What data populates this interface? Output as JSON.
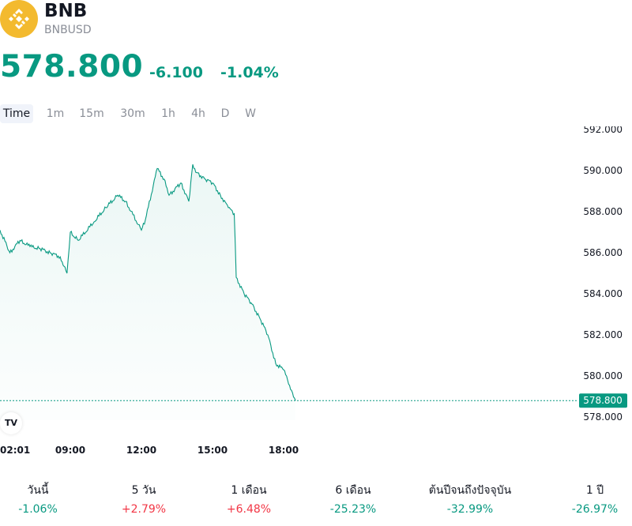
{
  "header": {
    "symbol": "BNB",
    "pair": "BNBUSD",
    "logo_color": "#F3BA2F"
  },
  "quote": {
    "price": "578.800",
    "change": "-6.100",
    "change_percent": "-1.04%",
    "color": "#089981"
  },
  "intervals": [
    {
      "label": "Time",
      "active": true
    },
    {
      "label": "1m",
      "active": false
    },
    {
      "label": "15m",
      "active": false
    },
    {
      "label": "30m",
      "active": false
    },
    {
      "label": "1h",
      "active": false
    },
    {
      "label": "4h",
      "active": false
    },
    {
      "label": "D",
      "active": false
    },
    {
      "label": "W",
      "active": false
    }
  ],
  "chart_data": {
    "type": "area",
    "x_ticks": [
      "02:01",
      "09:00",
      "12:00",
      "15:00",
      "18:00"
    ],
    "y_ticks": [
      "592.000",
      "590.000",
      "588.000",
      "586.000",
      "584.000",
      "582.000",
      "580.000",
      "578.000"
    ],
    "ylim": [
      578,
      592
    ],
    "last_price_label": "578.800",
    "line_color": "#089981",
    "series": [
      {
        "x": [
          "02:01",
          "03:00",
          "04:00",
          "05:00",
          "06:00",
          "07:00",
          "08:00",
          "08:40",
          "09:00",
          "09:20",
          "10:00",
          "10:30",
          "11:00",
          "11:20",
          "12:00",
          "12:10",
          "12:40",
          "13:00",
          "13:10",
          "13:40",
          "14:00",
          "14:10",
          "14:20",
          "14:40",
          "15:00",
          "15:20",
          "15:40",
          "15:55",
          "16:00",
          "16:20",
          "16:40",
          "17:00",
          "17:20",
          "17:40",
          "18:00",
          "18:20",
          "18:30"
        ],
        "values": [
          587.1,
          586.0,
          586.6,
          586.3,
          586.2,
          586.0,
          585.8,
          585.0,
          587.0,
          586.6,
          587.5,
          588.2,
          588.8,
          588.5,
          587.1,
          587.6,
          590.1,
          589.5,
          588.8,
          589.4,
          588.5,
          590.3,
          589.9,
          589.6,
          589.4,
          588.8,
          588.2,
          587.9,
          584.8,
          584.0,
          583.5,
          582.8,
          582.0,
          580.6,
          580.3,
          579.3,
          578.8
        ]
      }
    ],
    "grid": false
  },
  "branding": {
    "badge": "TV"
  },
  "performance": [
    {
      "label": "วันนี้",
      "value": "-1.06%",
      "dir": "down"
    },
    {
      "label": "5 วัน",
      "value": "+2.79%",
      "dir": "up"
    },
    {
      "label": "1 เดือน",
      "value": "+6.48%",
      "dir": "up"
    },
    {
      "label": "6 เดือน",
      "value": "-25.23%",
      "dir": "down"
    },
    {
      "label": "ต้นปีจนถึงปัจจุบัน",
      "value": "-32.99%",
      "dir": "down"
    },
    {
      "label": "1 ปี",
      "value": "-26.97%",
      "dir": "down"
    }
  ]
}
